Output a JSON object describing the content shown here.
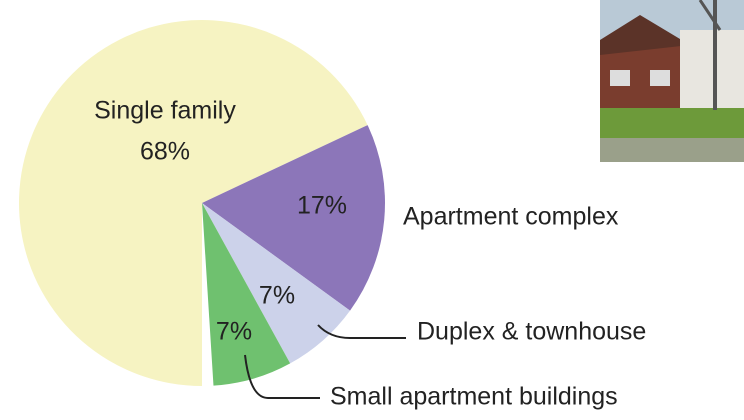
{
  "chart_data": {
    "type": "pie",
    "categories": [
      "Single family",
      "Apartment complex",
      "Duplex & townhouse",
      "Small apartment buildings"
    ],
    "values": [
      68,
      17,
      7,
      7
    ],
    "value_labels": [
      "68%",
      "17%",
      "7%",
      "7%"
    ],
    "colors": [
      "#f6f3c2",
      "#8c76b9",
      "#ccd2ea",
      "#6fc16f"
    ]
  }
}
